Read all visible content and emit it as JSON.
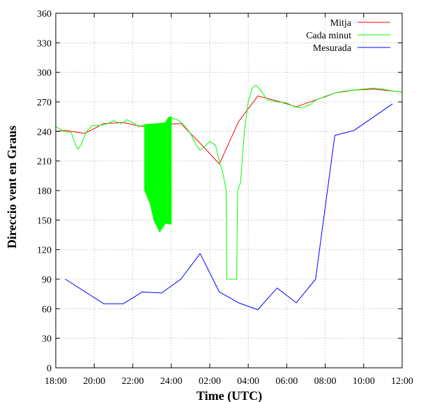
{
  "chart_data": {
    "type": "line",
    "title": "",
    "xlabel": "Time (UTC)",
    "ylabel": "Direccio vent en Graus",
    "xlim_hours": [
      18,
      36
    ],
    "ylim": [
      0,
      360
    ],
    "x_tick_values": [
      18,
      20,
      22,
      24,
      26,
      28,
      30,
      32,
      34,
      36
    ],
    "x_ticks": [
      "18:00",
      "20:00",
      "22:00",
      "24:00",
      "02:00",
      "04:00",
      "06:00",
      "08:00",
      "10:00",
      "12:00"
    ],
    "y_ticks": [
      0,
      30,
      60,
      90,
      120,
      150,
      180,
      210,
      240,
      270,
      300,
      330,
      360
    ],
    "grid": true,
    "legend_position": "top-right",
    "series": [
      {
        "name": "Mitja",
        "color": "#ff0000",
        "points": [
          [
            18,
            240
          ],
          [
            18.5,
            241
          ],
          [
            19.5,
            238
          ],
          [
            20.5,
            248
          ],
          [
            21.5,
            249
          ],
          [
            22.5,
            245
          ],
          [
            23.5,
            247
          ],
          [
            24.5,
            248
          ],
          [
            25.5,
            228
          ],
          [
            26.5,
            207
          ],
          [
            27.5,
            250
          ],
          [
            28.5,
            276
          ],
          [
            29.5,
            271
          ],
          [
            30.5,
            265
          ],
          [
            31.5,
            272
          ],
          [
            32.5,
            279
          ],
          [
            33.5,
            282
          ],
          [
            34.5,
            283
          ],
          [
            35.5,
            281
          ],
          [
            36,
            280
          ]
        ]
      },
      {
        "name": "Cada minut",
        "color": "#00ff00",
        "points": [
          [
            18,
            245
          ],
          [
            18.4,
            240
          ],
          [
            18.8,
            239
          ],
          [
            19.0,
            228
          ],
          [
            19.15,
            222
          ],
          [
            19.3,
            226
          ],
          [
            19.6,
            240
          ],
          [
            19.9,
            246
          ],
          [
            20.3,
            246
          ],
          [
            20.7,
            248
          ],
          [
            21.0,
            251
          ],
          [
            21.4,
            248
          ],
          [
            21.7,
            252
          ],
          [
            22.0,
            249
          ],
          [
            22.3,
            245
          ],
          [
            22.5,
            246
          ],
          [
            22.62,
            247
          ],
          [
            22.62,
            180
          ],
          [
            22.7,
            178
          ],
          [
            22.8,
            172
          ],
          [
            22.9,
            167
          ],
          [
            23.0,
            160
          ],
          [
            23.1,
            150
          ],
          [
            23.2,
            146
          ],
          [
            23.3,
            143
          ],
          [
            23.4,
            138
          ],
          [
            23.5,
            141
          ],
          [
            23.6,
            144
          ],
          [
            23.7,
            147
          ],
          [
            23.8,
            148
          ],
          [
            23.9,
            146
          ],
          [
            24.0,
            146
          ],
          [
            24.0,
            254
          ],
          [
            24.3,
            252
          ],
          [
            24.6,
            248
          ],
          [
            25.0,
            238
          ],
          [
            25.3,
            226
          ],
          [
            25.5,
            221
          ],
          [
            25.7,
            224
          ],
          [
            26.0,
            230
          ],
          [
            26.3,
            226
          ],
          [
            26.5,
            210
          ],
          [
            26.7,
            196
          ],
          [
            26.85,
            180
          ],
          [
            26.88,
            90
          ],
          [
            27.4,
            90
          ],
          [
            27.45,
            180
          ],
          [
            27.6,
            188
          ],
          [
            27.8,
            240
          ],
          [
            28.0,
            270
          ],
          [
            28.2,
            284
          ],
          [
            28.4,
            287
          ],
          [
            28.6,
            283
          ],
          [
            29.0,
            272
          ],
          [
            29.5,
            270
          ],
          [
            30.0,
            269
          ],
          [
            30.4,
            265
          ],
          [
            30.8,
            264
          ],
          [
            31.2,
            267
          ],
          [
            31.6,
            273
          ],
          [
            32.0,
            275
          ],
          [
            32.5,
            279
          ],
          [
            33.0,
            281
          ],
          [
            33.5,
            282
          ],
          [
            34.0,
            283
          ],
          [
            34.5,
            284
          ],
          [
            35.0,
            283
          ],
          [
            35.5,
            281
          ],
          [
            36.0,
            280
          ]
        ],
        "dense_oscillation": {
          "x_range": [
            22.62,
            24.0
          ],
          "upper": [
            [
              22.62,
              247
            ],
            [
              23.3,
              248
            ],
            [
              23.7,
              249
            ],
            [
              23.85,
              254
            ],
            [
              24.0,
              255
            ]
          ],
          "lower": [
            [
              22.62,
              180
            ],
            [
              22.9,
              167
            ],
            [
              23.1,
              150
            ],
            [
              23.4,
              138
            ],
            [
              23.7,
              147
            ],
            [
              23.9,
              146
            ],
            [
              24.0,
              146
            ]
          ]
        }
      },
      {
        "name": "Mesurada",
        "color": "#0000ff",
        "points": [
          [
            18.5,
            90
          ],
          [
            20.5,
            65
          ],
          [
            21.5,
            65
          ],
          [
            22.5,
            77
          ],
          [
            23.5,
            76
          ],
          [
            24.5,
            90
          ],
          [
            25.5,
            116
          ],
          [
            26.5,
            77
          ],
          [
            27.5,
            66
          ],
          [
            28.5,
            59
          ],
          [
            29.5,
            81
          ],
          [
            30.5,
            66
          ],
          [
            31.5,
            90
          ],
          [
            32.5,
            236
          ],
          [
            33.5,
            241
          ],
          [
            35.5,
            268
          ]
        ]
      }
    ]
  }
}
